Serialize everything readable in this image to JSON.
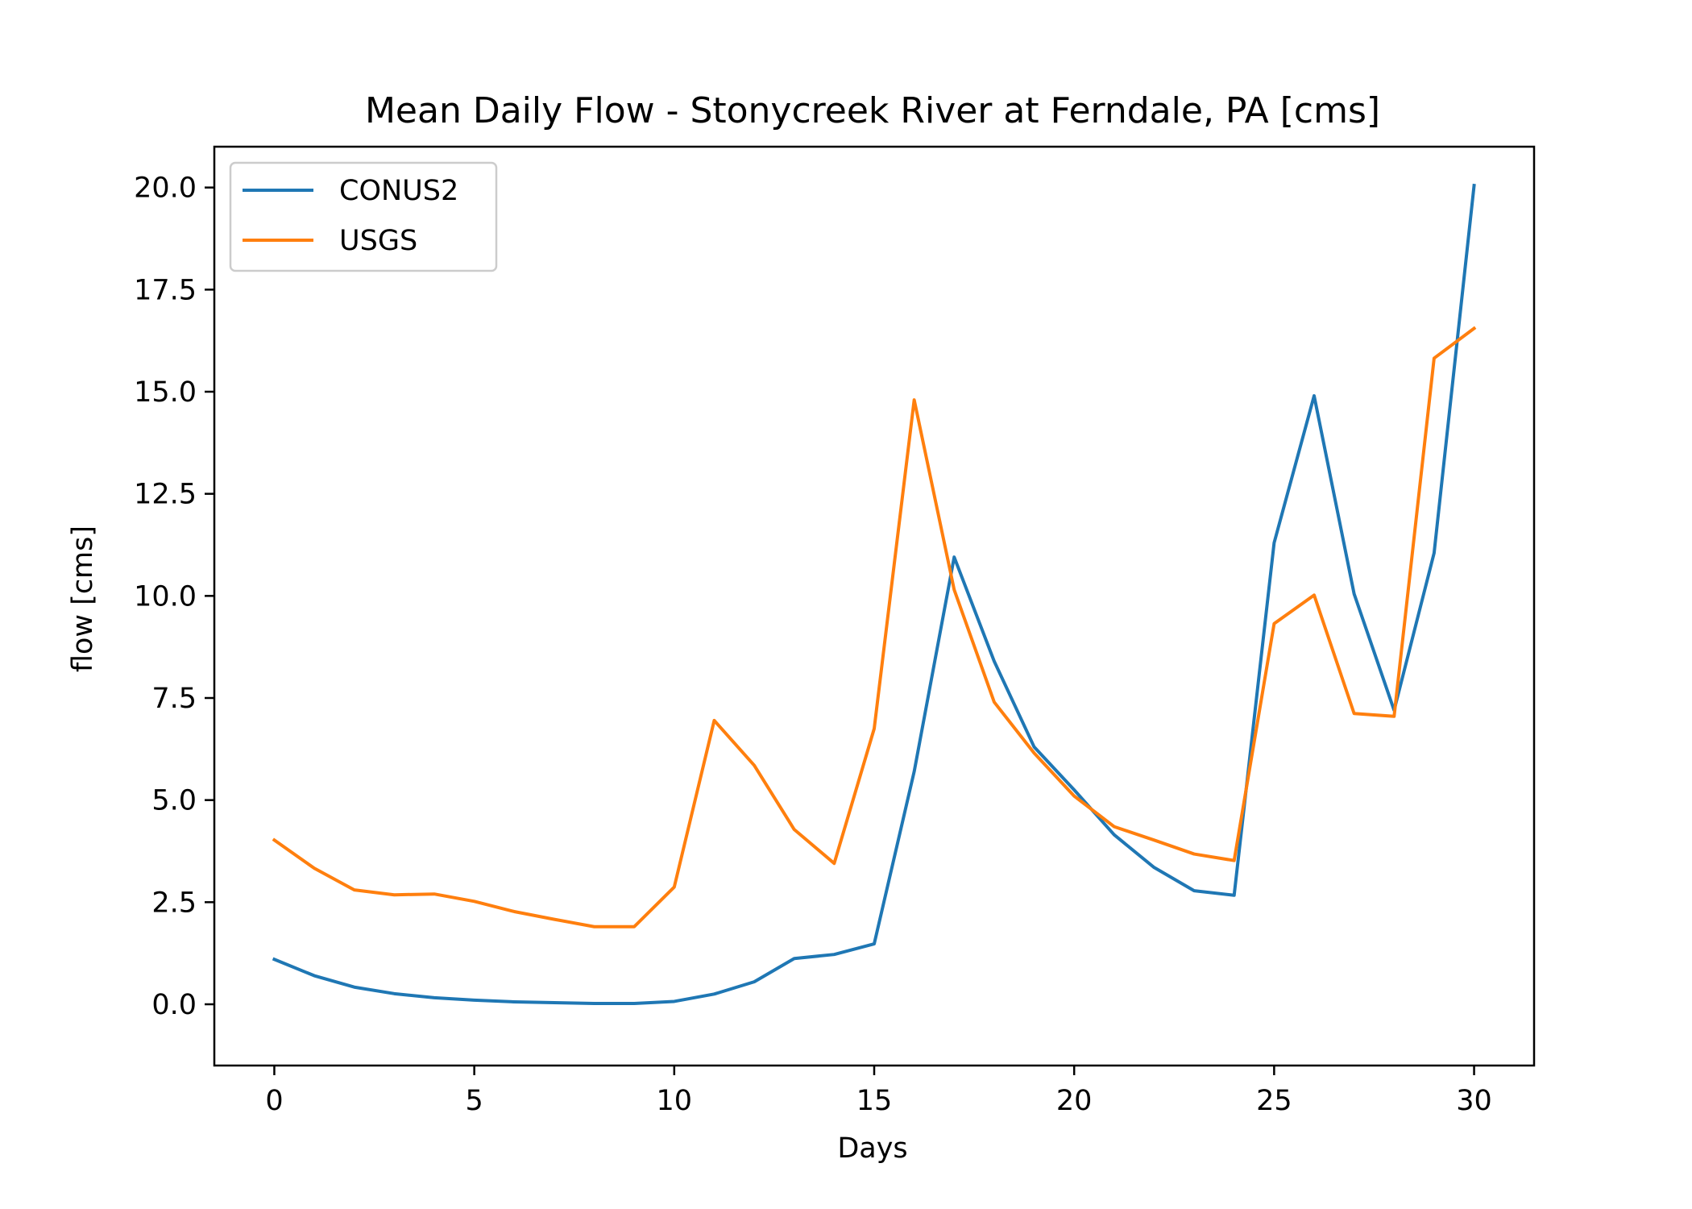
{
  "chart_data": {
    "type": "line",
    "title": "Mean Daily Flow - Stonycreek River at Ferndale, PA [cms]",
    "xlabel": "Days",
    "ylabel": "flow [cms]",
    "xlim": [
      -1.5,
      31.5
    ],
    "ylim": [
      -1.5,
      21.0
    ],
    "xticks": [
      0,
      5,
      10,
      15,
      20,
      25,
      30
    ],
    "xtick_labels": [
      "0",
      "5",
      "10",
      "15",
      "20",
      "25",
      "30"
    ],
    "yticks": [
      0,
      2.5,
      5,
      7.5,
      10,
      12.5,
      15,
      17.5,
      20
    ],
    "ytick_labels": [
      "0.0",
      "2.5",
      "5.0",
      "7.5",
      "10.0",
      "12.5",
      "15.0",
      "17.5",
      "20.0"
    ],
    "grid": false,
    "legend_position": "top-left",
    "x": [
      0,
      1,
      2,
      3,
      4,
      5,
      6,
      7,
      8,
      9,
      10,
      11,
      12,
      13,
      14,
      15,
      16,
      17,
      18,
      19,
      20,
      21,
      22,
      23,
      24,
      25,
      26,
      27,
      28,
      29,
      30
    ],
    "series": [
      {
        "name": "CONUS2",
        "color": "#1f77b4",
        "values": [
          1.1,
          0.7,
          0.42,
          0.26,
          0.16,
          0.1,
          0.06,
          0.04,
          0.02,
          0.02,
          0.07,
          0.25,
          0.55,
          1.12,
          1.22,
          1.48,
          5.7,
          10.95,
          8.4,
          6.3,
          5.25,
          4.15,
          3.35,
          2.78,
          2.67,
          11.3,
          14.9,
          10.05,
          7.2,
          11.05,
          20.05
        ]
      },
      {
        "name": "USGS",
        "color": "#ff7f0e",
        "values": [
          4.02,
          3.33,
          2.8,
          2.68,
          2.7,
          2.52,
          2.27,
          2.08,
          1.9,
          1.9,
          2.87,
          6.95,
          5.85,
          4.28,
          3.45,
          6.75,
          14.8,
          10.15,
          7.4,
          6.15,
          5.1,
          4.35,
          4.02,
          3.68,
          3.52,
          9.32,
          10.02,
          7.12,
          7.05,
          15.82,
          16.55
        ]
      }
    ]
  }
}
